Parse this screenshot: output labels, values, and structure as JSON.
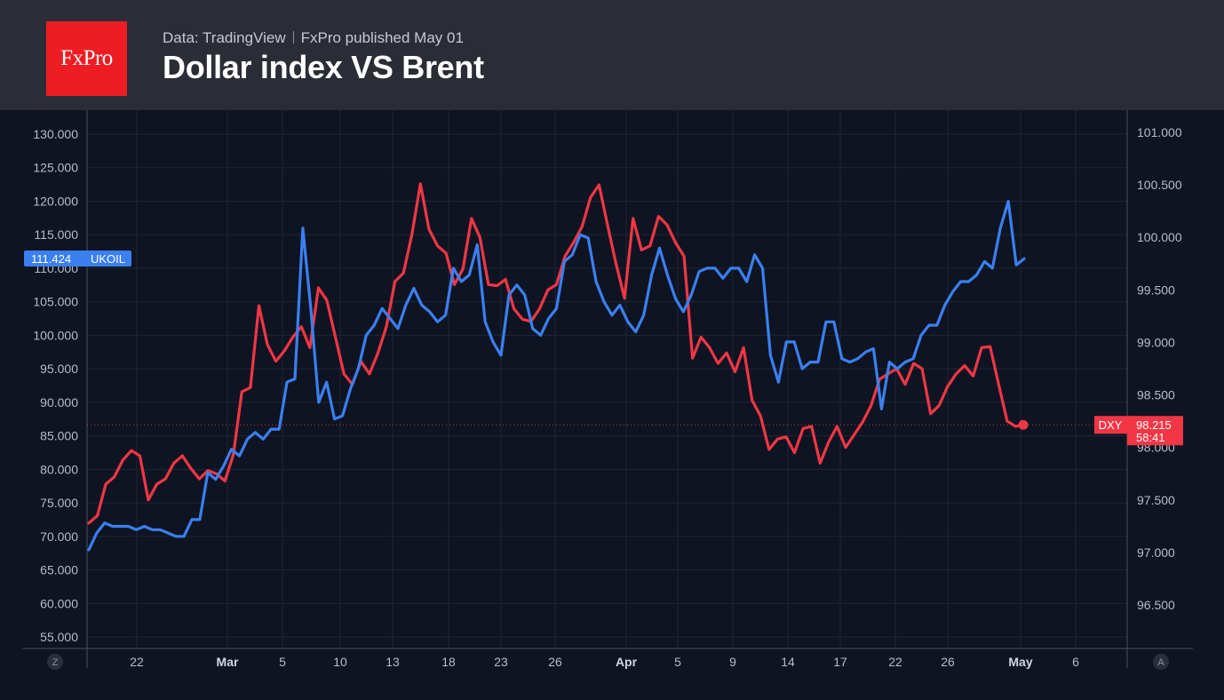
{
  "header": {
    "logo_text": "FxPro",
    "source": "Data: TradingView",
    "published": "FxPro published May 01",
    "title": "Dollar index VS Brent"
  },
  "colors": {
    "ukoil": "#3b7ff0",
    "dxy": "#f23645",
    "logo_bg": "#ee1d23",
    "header_bg": "#2b2d36",
    "chart_bg": "#0e1421"
  },
  "chart_data": {
    "type": "line",
    "title": "Dollar index VS Brent",
    "grid": true,
    "x_ticks": [
      "22",
      "Mar",
      "5",
      "10",
      "13",
      "18",
      "23",
      "26",
      "Apr",
      "5",
      "9",
      "14",
      "17",
      "22",
      "26",
      "May",
      "6"
    ],
    "x_ticks_bold": [
      "Mar",
      "Apr",
      "May"
    ],
    "left_axis": {
      "series": "UKOIL",
      "ylim": [
        52,
        133
      ],
      "ticks": [
        "130.000",
        "125.000",
        "120.000",
        "115.000",
        "110.000",
        "105.000",
        "100.000",
        "95.000",
        "90.000",
        "85.000",
        "80.000",
        "75.000",
        "70.000",
        "65.000",
        "60.000",
        "55.000"
      ]
    },
    "right_axis": {
      "series": "DXY",
      "ylim": [
        96.15,
        101.1
      ],
      "ticks": [
        "101.000",
        "100.500",
        "100.000",
        "99.500",
        "99.000",
        "98.500",
        "98.000",
        "97.500",
        "97.000",
        "96.500"
      ]
    },
    "series": [
      {
        "name": "UKOIL",
        "axis": "left",
        "last_label": "111.424",
        "values": [
          68.0,
          70.5,
          72.0,
          71.5,
          71.5,
          71.5,
          71.0,
          71.5,
          71.0,
          71.0,
          70.5,
          70.0,
          70.0,
          72.5,
          72.5,
          79.5,
          78.5,
          80.5,
          83.0,
          82.0,
          84.5,
          85.5,
          84.5,
          86.0,
          86.0,
          93.0,
          93.5,
          116.0,
          104.0,
          90.0,
          93.0,
          87.5,
          88.0,
          92.0,
          95.0,
          100.0,
          101.5,
          104.0,
          102.5,
          101.0,
          104.5,
          107.0,
          104.5,
          103.5,
          102.0,
          103.0,
          110.0,
          108.0,
          109.0,
          113.5,
          102.0,
          99.0,
          97.0,
          106.0,
          107.5,
          106.0,
          101.0,
          100.0,
          102.5,
          104.0,
          111.0,
          112.0,
          115.0,
          114.5,
          108.0,
          105.0,
          103.0,
          104.5,
          102.0,
          100.5,
          103.0,
          109.0,
          113.0,
          109.0,
          105.5,
          103.5,
          106.0,
          109.5,
          110.0,
          110.0,
          108.5,
          110.0,
          110.0,
          108.0,
          112.0,
          110.0,
          97.0,
          93.0,
          99.0,
          99.0,
          95.0,
          96.0,
          96.0,
          102.0,
          102.0,
          96.5,
          96.0,
          96.5,
          97.5,
          98.0,
          89.0,
          96.0,
          95.0,
          96.0,
          96.5,
          100.0,
          101.5,
          101.5,
          104.5,
          106.5,
          108.0,
          108.0,
          109.0,
          111.0,
          110.0,
          116.0,
          120.0,
          110.5,
          111.424
        ],
        "points": 119
      },
      {
        "name": "DXY",
        "axis": "right",
        "last_label": "98.215",
        "countdown": "58:41",
        "values": [
          97.28,
          97.35,
          97.65,
          97.72,
          97.88,
          97.97,
          97.92,
          97.5,
          97.65,
          97.7,
          97.85,
          97.92,
          97.8,
          97.7,
          97.78,
          97.75,
          97.68,
          97.93,
          98.53,
          98.57,
          99.35,
          98.98,
          98.82,
          98.92,
          99.05,
          99.15,
          98.95,
          99.52,
          99.4,
          99.05,
          98.7,
          98.6,
          98.82,
          98.7,
          98.9,
          99.15,
          99.58,
          99.66,
          100.03,
          100.51,
          100.08,
          99.92,
          99.85,
          99.55,
          99.7,
          100.18,
          100.0,
          99.55,
          99.54,
          99.6,
          99.32,
          99.22,
          99.2,
          99.32,
          99.5,
          99.55,
          99.82,
          99.95,
          100.1,
          100.38,
          100.5,
          100.12,
          99.75,
          99.42,
          100.18,
          99.88,
          99.92,
          100.2,
          100.12,
          99.95,
          99.82,
          98.85,
          99.05,
          98.95,
          98.8,
          98.9,
          98.72,
          98.95,
          98.45,
          98.3,
          97.98,
          98.08,
          98.1,
          97.95,
          98.18,
          98.2,
          97.85,
          98.05,
          98.2,
          98.0,
          98.12,
          98.24,
          98.4,
          98.65,
          98.7,
          98.75,
          98.6,
          98.8,
          98.75,
          98.32,
          98.4,
          98.58,
          98.7,
          98.78,
          98.68,
          98.95,
          98.96,
          98.6,
          98.25,
          98.2,
          98.215
        ],
        "points": 111
      }
    ],
    "crosshair_value": "98.215",
    "left_badge": "Z",
    "right_badge": "A"
  }
}
